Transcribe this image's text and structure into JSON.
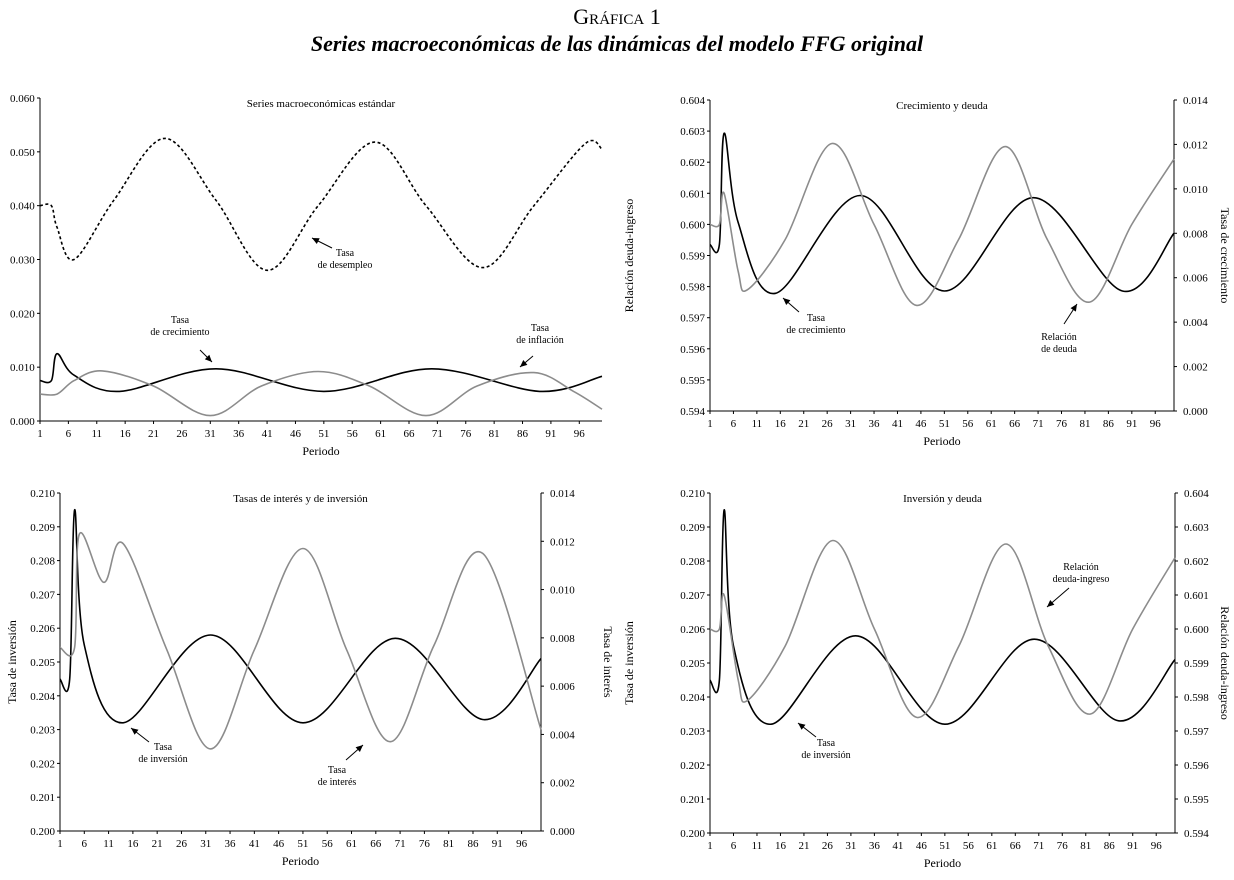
{
  "figure": {
    "label": "Gráfica 1",
    "title": "Series macroeconómicas de las dinámicas del modelo FFG original"
  },
  "x_ticks": [
    "1",
    "6",
    "11",
    "16",
    "21",
    "26",
    "31",
    "36",
    "41",
    "46",
    "51",
    "56",
    "61",
    "66",
    "71",
    "76",
    "81",
    "86",
    "91",
    "96"
  ],
  "chart_data": [
    {
      "id": "c1",
      "type": "line",
      "title": "Series macroeconómicas estándar",
      "xlabel": "Periodo",
      "ylabel": "",
      "x_range": [
        1,
        100
      ],
      "ylim": [
        0,
        0.06
      ],
      "y_ticks": [
        "0.000",
        "0.010",
        "0.020",
        "0.030",
        "0.040",
        "0.050",
        "0.060"
      ],
      "series": [
        {
          "name": "Tasa de desempleo",
          "color": "#000000",
          "dash": "dashed",
          "axis": "left",
          "points": [
            [
              1,
              0.04
            ],
            [
              3,
              0.04
            ],
            [
              4,
              0.036
            ],
            [
              7,
              0.03
            ],
            [
              14,
              0.041
            ],
            [
              23,
              0.0525
            ],
            [
              32,
              0.041
            ],
            [
              41,
              0.028
            ],
            [
              50,
              0.04
            ],
            [
              60,
              0.0518
            ],
            [
              69,
              0.04
            ],
            [
              79,
              0.0285
            ],
            [
              88,
              0.04
            ],
            [
              97,
              0.0515
            ],
            [
              100,
              0.0505
            ]
          ]
        },
        {
          "name": "Tasa de crecimiento",
          "color": "#000000",
          "dash": "solid",
          "axis": "left",
          "points": [
            [
              1,
              0.0075
            ],
            [
              3,
              0.0075
            ],
            [
              4,
              0.0125
            ],
            [
              7,
              0.0085
            ],
            [
              15,
              0.0055
            ],
            [
              32,
              0.0097
            ],
            [
              51,
              0.0055
            ],
            [
              70,
              0.0097
            ],
            [
              89,
              0.0055
            ],
            [
              100,
              0.0083
            ]
          ]
        },
        {
          "name": "Tasa de inflación",
          "color": "#8c8c8c",
          "dash": "solid",
          "axis": "left",
          "points": [
            [
              1,
              0.005
            ],
            [
              4,
              0.005
            ],
            [
              7,
              0.0075
            ],
            [
              12,
              0.0093
            ],
            [
              21,
              0.0065
            ],
            [
              31,
              0.001
            ],
            [
              40,
              0.0065
            ],
            [
              50,
              0.0092
            ],
            [
              59,
              0.0065
            ],
            [
              69,
              0.001
            ],
            [
              78,
              0.0065
            ],
            [
              88,
              0.009
            ],
            [
              95,
              0.0055
            ],
            [
              100,
              0.0022
            ]
          ]
        }
      ],
      "annotations": [
        {
          "lines": [
            "Tasa",
            "de desempleo"
          ]
        },
        {
          "lines": [
            "Tasa",
            "de crecimiento"
          ]
        },
        {
          "lines": [
            "Tasa",
            "de inflación"
          ]
        }
      ]
    },
    {
      "id": "c2",
      "type": "line",
      "title": "Crecimiento y deuda",
      "xlabel": "Periodo",
      "ylabel": "Relación deuda-ingreso",
      "ylabel_right": "Tasa de crecimiento",
      "x_range": [
        1,
        100
      ],
      "ylim": [
        0.594,
        0.604
      ],
      "ylim_right": [
        0,
        0.014
      ],
      "y_ticks": [
        "0.594",
        "0.595",
        "0.596",
        "0.597",
        "0.598",
        "0.599",
        "0.600",
        "0.601",
        "0.602",
        "0.603",
        "0.604"
      ],
      "y_ticks_right": [
        "0.000",
        "0.002",
        "0.004",
        "0.006",
        "0.008",
        "0.010",
        "0.012",
        "0.014"
      ],
      "series": [
        {
          "name": "Tasa de crecimiento",
          "color": "#000000",
          "dash": "solid",
          "axis": "right",
          "points": [
            [
              1,
              0.0075
            ],
            [
              3,
              0.0075
            ],
            [
              4,
              0.0125
            ],
            [
              7,
              0.0085
            ],
            [
              15,
              0.0053
            ],
            [
              33,
              0.0097
            ],
            [
              51,
              0.0054
            ],
            [
              70,
              0.0096
            ],
            [
              89,
              0.0054
            ],
            [
              100,
              0.008
            ]
          ]
        },
        {
          "name": "Relación de deuda",
          "color": "#8c8c8c",
          "dash": "solid",
          "axis": "left",
          "points": [
            [
              1,
              0.6
            ],
            [
              3,
              0.6
            ],
            [
              4,
              0.601
            ],
            [
              7,
              0.5985
            ],
            [
              9,
              0.5979
            ],
            [
              17,
              0.5995
            ],
            [
              27,
              0.6026
            ],
            [
              36,
              0.6
            ],
            [
              45,
              0.5974
            ],
            [
              54,
              0.5995
            ],
            [
              64,
              0.6025
            ],
            [
              73,
              0.5995
            ],
            [
              82,
              0.5975
            ],
            [
              91,
              0.6
            ],
            [
              100,
              0.6021
            ]
          ]
        }
      ],
      "annotations": [
        {
          "lines": [
            "Tasa",
            "de crecimiento"
          ]
        },
        {
          "lines": [
            "Relación",
            "de deuda"
          ]
        }
      ]
    },
    {
      "id": "c3",
      "type": "line",
      "title": "Tasas de interés y de inversión",
      "xlabel": "Periodo",
      "ylabel": "Tasa de inversión",
      "ylabel_right": "Tasa de interés",
      "x_range": [
        1,
        100
      ],
      "ylim": [
        0.2,
        0.21
      ],
      "ylim_right": [
        0,
        0.014
      ],
      "y_ticks": [
        "0.200",
        "0.201",
        "0.202",
        "0.203",
        "0.204",
        "0.205",
        "0.206",
        "0.207",
        "0.208",
        "0.209",
        "0.210"
      ],
      "y_ticks_right": [
        "0.000",
        "0.002",
        "0.004",
        "0.006",
        "0.008",
        "0.010",
        "0.012",
        "0.014"
      ],
      "series": [
        {
          "name": "Tasa de inversión",
          "color": "#000000",
          "dash": "solid",
          "axis": "left",
          "points": [
            [
              1,
              0.2045
            ],
            [
              3,
              0.2045
            ],
            [
              4,
              0.2095
            ],
            [
              6,
              0.2055
            ],
            [
              14,
              0.2032
            ],
            [
              32,
              0.2058
            ],
            [
              51,
              0.2032
            ],
            [
              70,
              0.2057
            ],
            [
              88,
              0.2033
            ],
            [
              100,
              0.2051
            ]
          ]
        },
        {
          "name": "Tasa de interés",
          "color": "#8c8c8c",
          "dash": "solid",
          "axis": "right",
          "points": [
            [
              1,
              0.0076
            ],
            [
              4,
              0.0076
            ],
            [
              5,
              0.0123
            ],
            [
              10,
              0.0103
            ],
            [
              14,
              0.0119
            ],
            [
              23,
              0.0075
            ],
            [
              32,
              0.0034
            ],
            [
              41,
              0.0075
            ],
            [
              51,
              0.0117
            ],
            [
              60,
              0.0075
            ],
            [
              69,
              0.0037
            ],
            [
              78,
              0.0077
            ],
            [
              88,
              0.0115
            ],
            [
              100,
              0.0042
            ]
          ]
        }
      ],
      "annotations": [
        {
          "lines": [
            "Tasa",
            "de inversión"
          ]
        },
        {
          "lines": [
            "Tasa",
            "de interés"
          ]
        }
      ]
    },
    {
      "id": "c4",
      "type": "line",
      "title": "Inversión y deuda",
      "xlabel": "Periodo",
      "ylabel": "Tasa de inversión",
      "ylabel_right": "Relación deuda-ingreso",
      "x_range": [
        1,
        100
      ],
      "ylim": [
        0.2,
        0.21
      ],
      "ylim_right": [
        0.594,
        0.604
      ],
      "y_ticks": [
        "0.200",
        "0.201",
        "0.202",
        "0.203",
        "0.204",
        "0.205",
        "0.206",
        "0.207",
        "0.208",
        "0.209",
        "0.210"
      ],
      "y_ticks_right": [
        "0.594",
        "0.595",
        "0.596",
        "0.597",
        "0.598",
        "0.599",
        "0.600",
        "0.601",
        "0.602",
        "0.603",
        "0.604"
      ],
      "series": [
        {
          "name": "Tasa de inversión",
          "color": "#000000",
          "dash": "solid",
          "axis": "left",
          "points": [
            [
              1,
              0.2045
            ],
            [
              3,
              0.2045
            ],
            [
              4,
              0.2095
            ],
            [
              6,
              0.2055
            ],
            [
              14,
              0.2032
            ],
            [
              32,
              0.2058
            ],
            [
              51,
              0.2032
            ],
            [
              70,
              0.2057
            ],
            [
              88,
              0.2033
            ],
            [
              100,
              0.2051
            ]
          ]
        },
        {
          "name": "Relación deuda-ingreso",
          "color": "#8c8c8c",
          "dash": "solid",
          "axis": "right",
          "points": [
            [
              1,
              0.6
            ],
            [
              3,
              0.6
            ],
            [
              4,
              0.601
            ],
            [
              7,
              0.5985
            ],
            [
              9,
              0.5979
            ],
            [
              17,
              0.5995
            ],
            [
              27,
              0.6026
            ],
            [
              36,
              0.6
            ],
            [
              45,
              0.5974
            ],
            [
              54,
              0.5995
            ],
            [
              64,
              0.6025
            ],
            [
              73,
              0.5995
            ],
            [
              82,
              0.5975
            ],
            [
              91,
              0.6
            ],
            [
              100,
              0.6021
            ]
          ]
        }
      ],
      "annotations": [
        {
          "lines": [
            "Tasa",
            "de inversión"
          ]
        },
        {
          "lines": [
            "Relación",
            "deuda-ingreso"
          ]
        }
      ]
    }
  ]
}
